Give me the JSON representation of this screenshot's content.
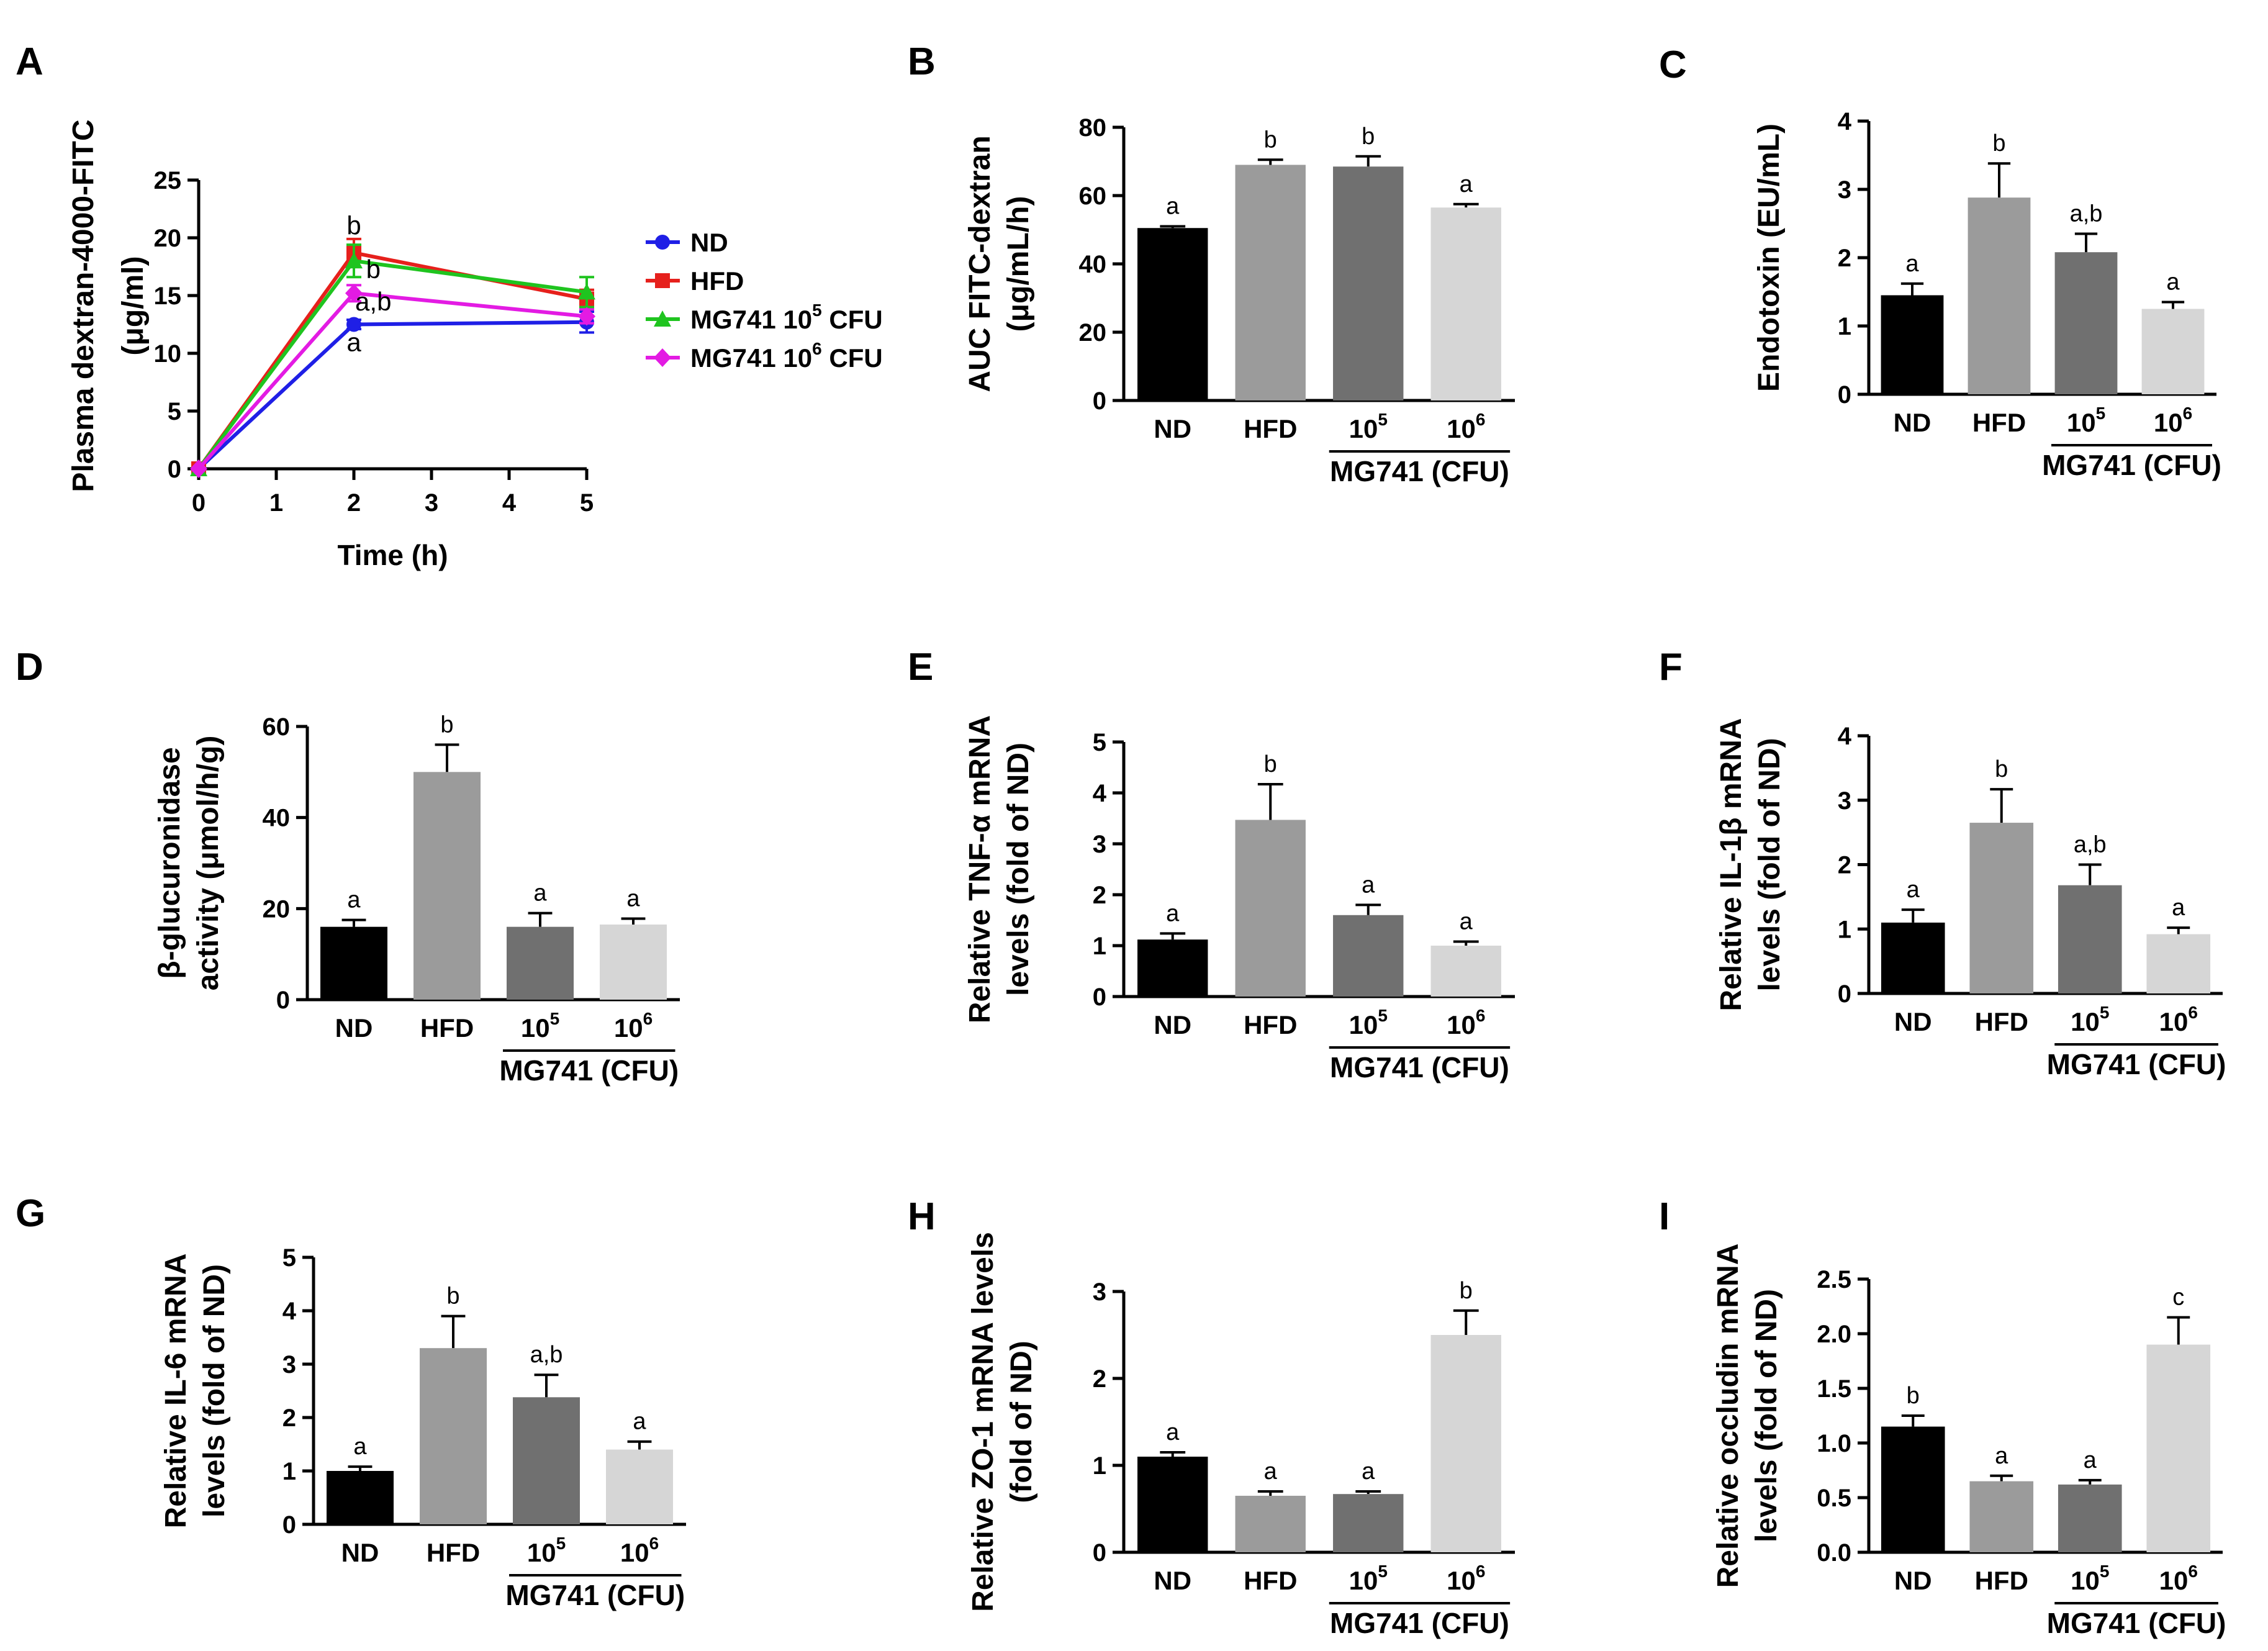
{
  "chart_data": [
    {
      "panel": "A",
      "type": "line",
      "ylabel": [
        "Plasma dextran-4000-FITC",
        "(μg/ml)"
      ],
      "xlabel": "Time (h)",
      "x_ticks": [
        "0",
        "1",
        "2",
        "3",
        "4",
        "5"
      ],
      "y_ticks": [
        "0",
        "5",
        "10",
        "15",
        "20",
        "25"
      ],
      "xlim": [
        0,
        5
      ],
      "ylim": [
        0,
        25
      ],
      "x": [
        0,
        2,
        5
      ],
      "series": [
        {
          "name": "ND",
          "color": "#1f1fe6",
          "marker": "circle",
          "values": [
            0,
            12.5,
            12.7
          ],
          "errors": [
            0,
            0.4,
            0.9
          ]
        },
        {
          "name": "HFD",
          "color": "#e6201c",
          "marker": "square",
          "values": [
            0,
            18.7,
            14.7
          ],
          "errors": [
            0,
            1.2,
            0.8
          ]
        },
        {
          "name": "MG741 10^5 CFU",
          "color": "#1fc41f",
          "marker": "triangle",
          "values": [
            0,
            18.0,
            15.3
          ],
          "errors": [
            0,
            1.4,
            1.3
          ]
        },
        {
          "name": "MG741 10^6 CFU",
          "color": "#e31be3",
          "marker": "diamond",
          "values": [
            0,
            15.2,
            13.2
          ],
          "errors": [
            0,
            0.7,
            0.6
          ]
        }
      ],
      "legend": [
        {
          "base": "ND",
          "sup": "",
          "unit": ""
        },
        {
          "base": "HFD",
          "sup": "",
          "unit": ""
        },
        {
          "base": "MG741 10",
          "sup": "5",
          "unit": " CFU"
        },
        {
          "base": "MG741 10",
          "sup": "6",
          "unit": " CFU"
        }
      ],
      "annotations": [
        {
          "x": 2,
          "y": 20.3,
          "text": "b"
        },
        {
          "x": 2.25,
          "y": 16.5,
          "text": "b"
        },
        {
          "x": 2.25,
          "y": 13.7,
          "text": "a,b"
        },
        {
          "x": 2,
          "y": 10.2,
          "text": "a"
        }
      ]
    },
    {
      "panel": "B",
      "type": "bar",
      "ylabel": [
        "AUC FITC-dextran",
        "(μg/mL/h)"
      ],
      "ylim": [
        0,
        80
      ],
      "y_ticks": [
        "0",
        "20",
        "40",
        "60",
        "80"
      ],
      "categories": [
        "ND",
        "HFD",
        "10",
        "10"
      ],
      "category_sup": [
        "",
        "",
        "5",
        "6"
      ],
      "group_label": "MG741 (CFU)",
      "values": [
        50.5,
        69.0,
        68.5,
        56.5
      ],
      "errors": [
        0.5,
        1.5,
        3.0,
        1.0
      ],
      "letters": [
        "a",
        "b",
        "b",
        "a"
      ]
    },
    {
      "panel": "C",
      "type": "bar",
      "ylabel": [
        "Endotoxin (EU/mL)"
      ],
      "ylim": [
        0,
        4
      ],
      "y_ticks": [
        "0",
        "1",
        "2",
        "3",
        "4"
      ],
      "categories": [
        "ND",
        "HFD",
        "10",
        "10"
      ],
      "category_sup": [
        "",
        "",
        "5",
        "6"
      ],
      "group_label": "MG741 (CFU)",
      "values": [
        1.45,
        2.88,
        2.08,
        1.25
      ],
      "errors": [
        0.17,
        0.5,
        0.27,
        0.1
      ],
      "letters": [
        "a",
        "b",
        "a,b",
        "a"
      ]
    },
    {
      "panel": "D",
      "type": "bar",
      "ylabel": [
        "β-glucuronidase",
        "activity (μmol/h/g)"
      ],
      "ylim": [
        0,
        60
      ],
      "y_ticks": [
        "0",
        "20",
        "40",
        "60"
      ],
      "categories": [
        "ND",
        "HFD",
        "10",
        "10"
      ],
      "category_sup": [
        "",
        "",
        "5",
        "6"
      ],
      "group_label": "MG741 (CFU)",
      "values": [
        16.0,
        50.0,
        16.0,
        16.5
      ],
      "errors": [
        1.5,
        6.0,
        3.0,
        1.3
      ],
      "letters": [
        "a",
        "b",
        "a",
        "a"
      ]
    },
    {
      "panel": "E",
      "type": "bar",
      "ylabel": [
        "Relative TNF-α mRNA",
        "levels (fold of ND)"
      ],
      "ylim": [
        0,
        5
      ],
      "y_ticks": [
        "0",
        "1",
        "2",
        "3",
        "4",
        "5"
      ],
      "categories": [
        "ND",
        "HFD",
        "10",
        "10"
      ],
      "category_sup": [
        "",
        "",
        "5",
        "6"
      ],
      "group_label": "MG741 (CFU)",
      "values": [
        1.12,
        3.47,
        1.6,
        1.0
      ],
      "errors": [
        0.12,
        0.7,
        0.2,
        0.08
      ],
      "letters": [
        "a",
        "b",
        "a",
        "a"
      ]
    },
    {
      "panel": "F",
      "type": "bar",
      "ylabel": [
        "Relative IL-1β mRNA",
        "levels (fold of ND)"
      ],
      "ylim": [
        0,
        4
      ],
      "y_ticks": [
        "0",
        "1",
        "2",
        "3",
        "4"
      ],
      "categories": [
        "ND",
        "HFD",
        "10",
        "10"
      ],
      "category_sup": [
        "",
        "",
        "5",
        "6"
      ],
      "group_label": "MG741 (CFU)",
      "values": [
        1.1,
        2.65,
        1.68,
        0.92
      ],
      "errors": [
        0.2,
        0.52,
        0.32,
        0.1
      ],
      "letters": [
        "a",
        "b",
        "a,b",
        "a"
      ]
    },
    {
      "panel": "G",
      "type": "bar",
      "ylabel": [
        "Relative IL-6 mRNA",
        "levels (fold of ND)"
      ],
      "ylim": [
        0,
        5
      ],
      "y_ticks": [
        "0",
        "1",
        "2",
        "3",
        "4",
        "5"
      ],
      "categories": [
        "ND",
        "HFD",
        "10",
        "10"
      ],
      "category_sup": [
        "",
        "",
        "5",
        "6"
      ],
      "group_label": "MG741 (CFU)",
      "values": [
        1.0,
        3.3,
        2.38,
        1.4
      ],
      "errors": [
        0.08,
        0.6,
        0.42,
        0.15
      ],
      "letters": [
        "a",
        "b",
        "a,b",
        "a"
      ]
    },
    {
      "panel": "H",
      "type": "bar",
      "ylabel": [
        "Relative ZO-1 mRNA levels",
        "(fold of ND)"
      ],
      "ylim": [
        0,
        3
      ],
      "y_ticks": [
        "0",
        "1",
        "2",
        "3"
      ],
      "categories": [
        "ND",
        "HFD",
        "10",
        "10"
      ],
      "category_sup": [
        "",
        "",
        "5",
        "6"
      ],
      "group_label": "MG741 (CFU)",
      "values": [
        1.1,
        0.65,
        0.67,
        2.5
      ],
      "errors": [
        0.05,
        0.05,
        0.03,
        0.28
      ],
      "letters": [
        "a",
        "a",
        "a",
        "b"
      ]
    },
    {
      "panel": "I",
      "type": "bar",
      "ylabel": [
        "Relative occludin mRNA",
        "levels (fold of ND)"
      ],
      "ylim": [
        0,
        2.5
      ],
      "y_ticks": [
        "0.0",
        "0.5",
        "1.0",
        "1.5",
        "2.0",
        "2.5"
      ],
      "categories": [
        "ND",
        "HFD",
        "10",
        "10"
      ],
      "category_sup": [
        "",
        "",
        "5",
        "6"
      ],
      "group_label": "MG741 (CFU)",
      "values": [
        1.15,
        0.65,
        0.62,
        1.9
      ],
      "errors": [
        0.1,
        0.05,
        0.04,
        0.25
      ],
      "letters": [
        "b",
        "a",
        "a",
        "c"
      ]
    }
  ],
  "bar_colors": [
    "#000000",
    "#9b9b9b",
    "#707070",
    "#d6d6d6"
  ],
  "axis_color": "#000000"
}
